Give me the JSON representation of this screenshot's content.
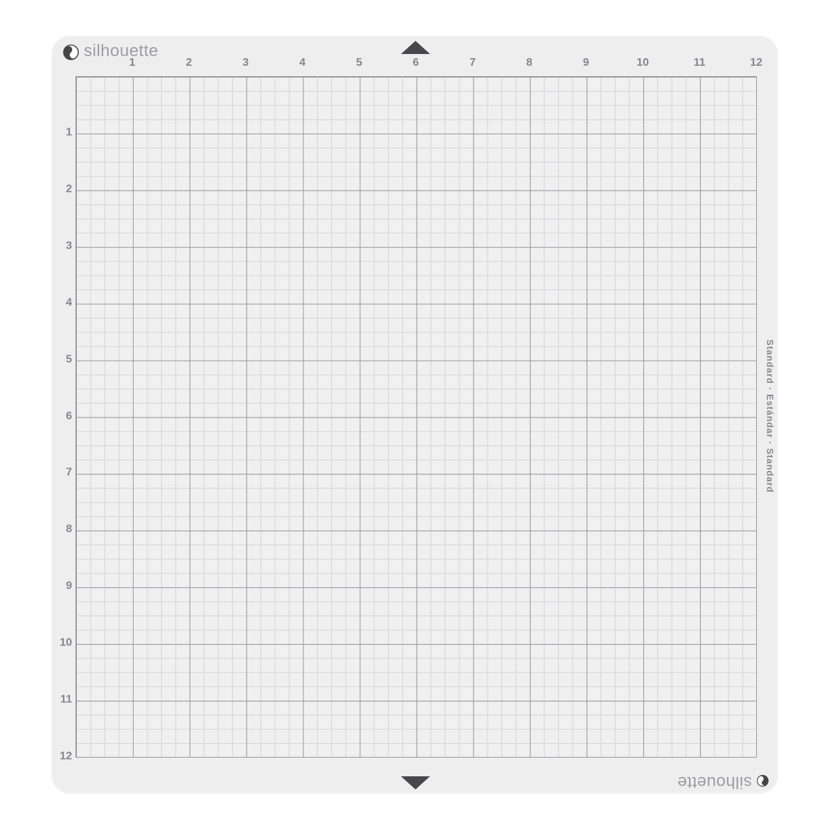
{
  "product": {
    "brand": "silhouette",
    "side_label": "Standard  ·  Estándar  ·  Standard"
  },
  "ruler": {
    "top_labels": [
      "1",
      "2",
      "3",
      "4",
      "5",
      "6",
      "7",
      "8",
      "9",
      "10",
      "11",
      "12"
    ],
    "left_labels": [
      "1",
      "2",
      "3",
      "4",
      "5",
      "6",
      "7",
      "8",
      "9",
      "10",
      "11",
      "12"
    ],
    "inches_per_side": 12,
    "subdivisions_per_inch": 4
  },
  "markers": {
    "top_marker": "up-triangle",
    "bottom_marker": "down-triangle"
  },
  "colors": {
    "page_bg": "#ffffff",
    "mat_bg": "#eeeeef",
    "grid_bg": "#f0f0f1",
    "grid_minor": "#d3d3d5",
    "grid_major": "#98989b",
    "label_gray": "#85858a",
    "brand_gray": "#9d9da0",
    "dark_accent": "#48484a"
  }
}
